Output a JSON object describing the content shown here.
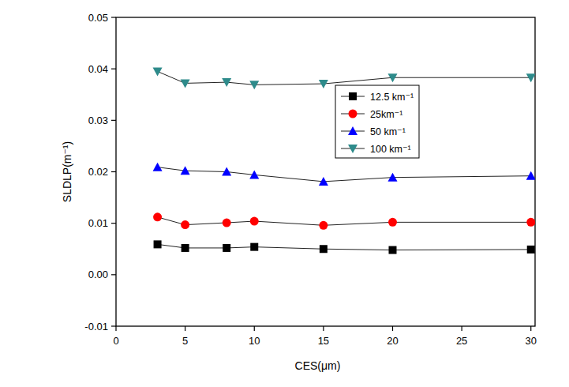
{
  "chart_data": {
    "type": "line",
    "x_label": "CES(μm)",
    "y_label": "SLDLP(m⁻¹)",
    "x": [
      3,
      5,
      8,
      10,
      15,
      20,
      30
    ],
    "xlim": [
      0,
      30.3
    ],
    "xticks": [
      0,
      5,
      10,
      15,
      20,
      25,
      30
    ],
    "ylim": [
      -0.01,
      0.05
    ],
    "yticks": [
      -0.01,
      {
        "value": 0,
        "label": "0.00"
      },
      0.01,
      0.02,
      0.03,
      0.04,
      0.05
    ],
    "legend": "upper right",
    "series": [
      {
        "name": "12.5 km⁻¹",
        "color": "#000000",
        "marker": "square",
        "line_style": "solid",
        "values": [
          0.0059,
          0.0052,
          0.0052,
          0.0054,
          0.005,
          0.0048,
          0.0049
        ]
      },
      {
        "name": "25km⁻¹",
        "color": "#ff0000",
        "marker": "circle",
        "line_style": "solid",
        "values": [
          0.0112,
          0.0097,
          0.0101,
          0.0104,
          0.0096,
          0.0102,
          0.0102
        ]
      },
      {
        "name": "50 km⁻¹",
        "color": "#0000ff",
        "marker": "triangle-up",
        "line_style": "solid",
        "values": [
          0.0209,
          0.0202,
          0.02,
          0.0194,
          0.0181,
          0.0189,
          0.0192
        ]
      },
      {
        "name": "100 km⁻¹",
        "color": "#2e8b8b",
        "marker": "triangle-down",
        "line_style": "solid",
        "values": [
          0.0395,
          0.0372,
          0.0374,
          0.0369,
          0.0371,
          0.0383,
          0.0383
        ]
      }
    ]
  }
}
